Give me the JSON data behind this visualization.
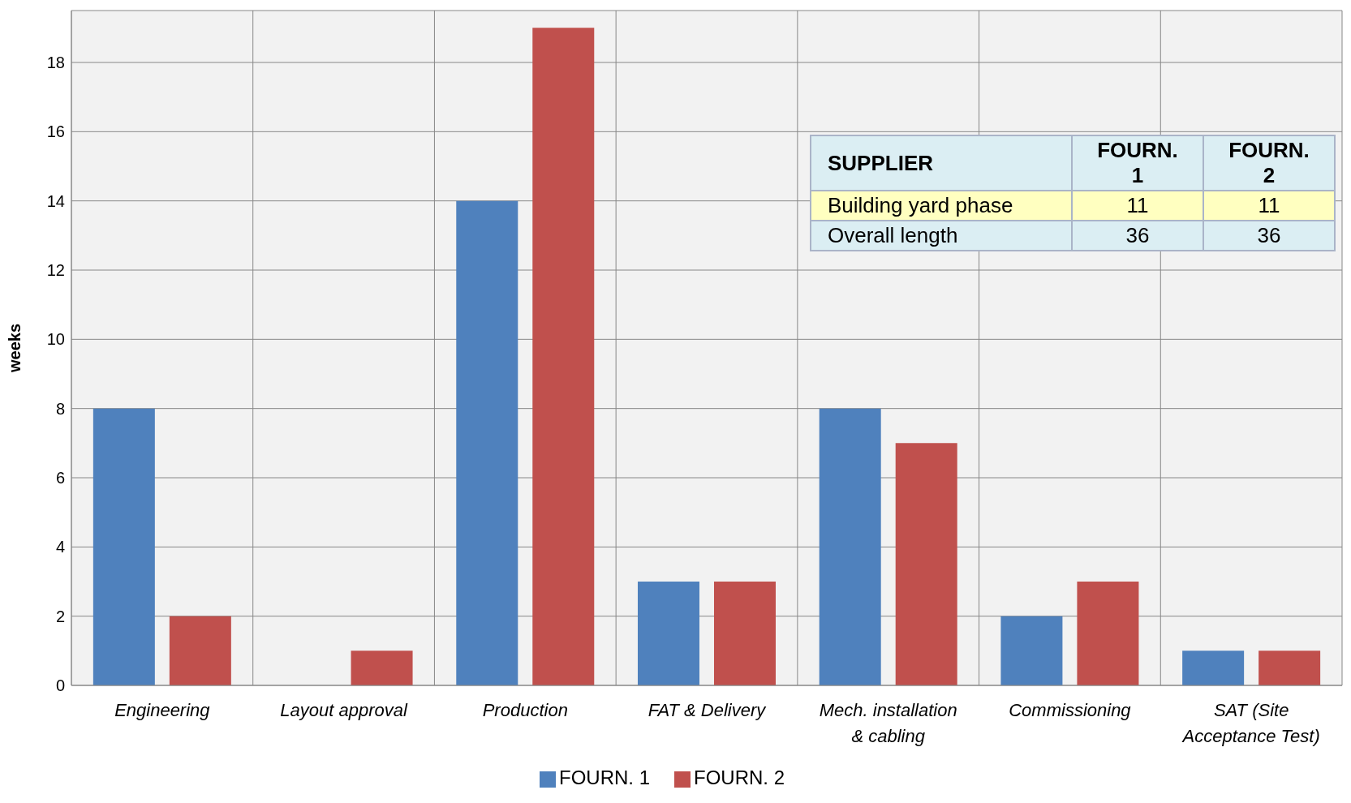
{
  "chart_data": {
    "type": "bar",
    "ylabel": "weeks",
    "categories": [
      "Engineering",
      "Layout approval",
      "Production",
      "FAT & Delivery",
      "Mech. installation & cabling",
      "Commissioning",
      "SAT (Site Acceptance Test)"
    ],
    "series": [
      {
        "name": "FOURN. 1",
        "color": "#4f81bd",
        "values": [
          8,
          0,
          14,
          3,
          8,
          2,
          1
        ]
      },
      {
        "name": "FOURN. 2",
        "color": "#c0504d",
        "values": [
          2,
          1,
          19,
          3,
          7,
          3,
          1
        ]
      }
    ],
    "ylim": [
      0,
      19.5
    ],
    "yticks": [
      0,
      2,
      4,
      6,
      8,
      10,
      12,
      14,
      16,
      18
    ],
    "grid": true,
    "legend": "bottom",
    "annotations": [
      "SUPPLIER",
      "FOURN. 1",
      "FOURN. 2",
      "Building yard phase",
      "11",
      "11",
      "Overall length",
      "36",
      "36"
    ]
  }
}
